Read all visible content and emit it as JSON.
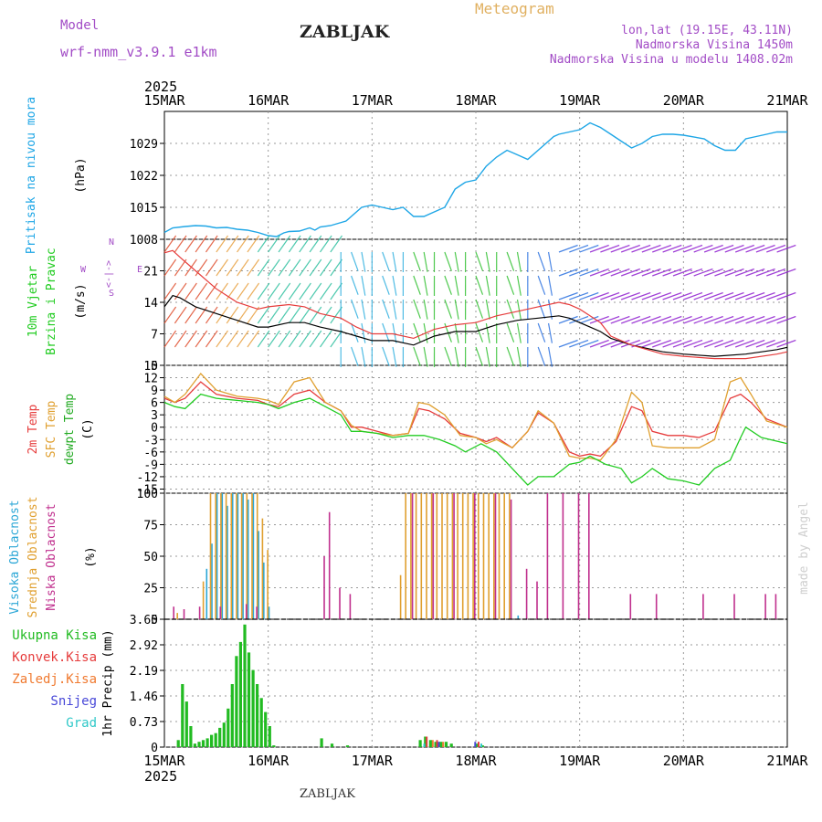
{
  "header": {
    "model_label": "Model",
    "model_name": "wrf-nmm_v3.9.1 e1km",
    "station": "ZABLJAK",
    "meteogram": "Meteogram",
    "lonlat": "lon,lat (19.15E, 43.11N)",
    "altitude": "Nadmorska Visina 1450m",
    "model_altitude": "Nadmorska Visina u modelu 1408.02m",
    "footer_station": "ZABLJAK",
    "watermark": "made by Angel"
  },
  "colors": {
    "pressure": "#1ea6e6",
    "temp": "#e63c3c",
    "sfc": "#e0a030",
    "dewpt": "#22cc22",
    "high_cloud": "#2aa6d6",
    "mid_cloud": "#e0a030",
    "low_cloud": "#c0308e",
    "total_precip": "#22bb22",
    "conv_precip": "#e63c3c",
    "freezing": "#f07a30",
    "snow": "#4848d8",
    "graupel": "#30c8c8",
    "wind_line": "#000000",
    "gust": "#e63c3c",
    "model_label": "#a24cc6",
    "meteogram_label": "#e0b060"
  },
  "chart_data": [
    {
      "type": "line",
      "name": "pressure",
      "ylabel": [
        "Pritisak na nivou mora",
        "(hPa)"
      ],
      "yticks": [
        1008,
        1015,
        1022,
        1029
      ],
      "ylim": [
        1008,
        1036
      ],
      "time_axis": {
        "year": "2025",
        "labels": [
          "15MAR",
          "16MAR",
          "17MAR",
          "18MAR",
          "19MAR",
          "20MAR",
          "21MAR"
        ],
        "days": [
          0,
          1,
          2,
          3,
          4,
          5,
          6
        ]
      },
      "x": [
        0,
        0.08,
        0.2,
        0.3,
        0.4,
        0.5,
        0.6,
        0.7,
        0.8,
        0.9,
        1.0,
        1.08,
        1.15,
        1.2,
        1.3,
        1.4,
        1.45,
        1.5,
        1.6,
        1.75,
        1.8,
        1.9,
        2.0,
        2.1,
        2.2,
        2.3,
        2.4,
        2.5,
        2.6,
        2.7,
        2.8,
        2.9,
        3.0,
        3.1,
        3.2,
        3.3,
        3.4,
        3.5,
        3.6,
        3.75,
        3.8,
        3.9,
        4.0,
        4.1,
        4.2,
        4.3,
        4.4,
        4.5,
        4.6,
        4.7,
        4.8,
        4.9,
        5.0,
        5.2,
        5.3,
        5.4,
        5.5,
        5.6,
        5.7,
        5.8,
        5.9,
        6.0
      ],
      "y": [
        1009.5,
        1010.5,
        1010.8,
        1011.0,
        1010.9,
        1010.5,
        1010.6,
        1010.2,
        1010.0,
        1009.5,
        1008.8,
        1008.6,
        1009.4,
        1009.7,
        1009.8,
        1010.5,
        1010.0,
        1010.7,
        1011.0,
        1012.0,
        1013.0,
        1015.0,
        1015.5,
        1015.0,
        1014.5,
        1015.0,
        1013.0,
        1013.0,
        1014.0,
        1015.0,
        1019.0,
        1020.5,
        1021.0,
        1024.0,
        1026.0,
        1027.5,
        1026.5,
        1025.5,
        1027.5,
        1030.5,
        1031.0,
        1031.5,
        1032.0,
        1033.5,
        1032.5,
        1031.0,
        1029.5,
        1028.0,
        1029.0,
        1030.5,
        1031.0,
        1031.0,
        1030.8,
        1030.0,
        1028.5,
        1027.5,
        1027.5,
        1030.0,
        1030.5,
        1031.0,
        1031.5,
        1031.5
      ]
    },
    {
      "type": "line",
      "name": "wind",
      "ylabel": [
        "10m Vjetar",
        "Brzina i Pravac",
        "(m/s)"
      ],
      "yticks": [
        0,
        7,
        14,
        21
      ],
      "ylim": [
        0,
        28
      ],
      "direction_key": [
        "W",
        "<-|->",
        "E",
        "N",
        "S"
      ],
      "series": [
        {
          "name": "speed",
          "x": [
            0,
            0.08,
            0.15,
            0.3,
            0.5,
            0.7,
            0.9,
            1.0,
            1.2,
            1.35,
            1.5,
            1.7,
            1.85,
            2.0,
            2.2,
            2.4,
            2.6,
            2.8,
            3.0,
            3.2,
            3.4,
            3.6,
            3.8,
            3.9,
            4.0,
            4.1,
            4.2,
            4.3,
            4.5,
            4.8,
            5.0,
            5.3,
            5.6,
            5.9,
            6.0
          ],
          "y": [
            13,
            15.5,
            15,
            13,
            11.5,
            10,
            8.5,
            8.5,
            9.5,
            9.5,
            8.5,
            7.5,
            6.5,
            5.5,
            5.5,
            4.5,
            6.5,
            7.5,
            7.5,
            9,
            10,
            10.5,
            11,
            10.5,
            9.5,
            8.5,
            7.5,
            6,
            4.5,
            3,
            2.5,
            2,
            2.5,
            3.5,
            4
          ]
        },
        {
          "name": "gust",
          "x": [
            0,
            0.08,
            0.15,
            0.3,
            0.5,
            0.7,
            0.9,
            1.0,
            1.2,
            1.35,
            1.5,
            1.7,
            1.85,
            2.0,
            2.2,
            2.4,
            2.6,
            2.8,
            3.0,
            3.2,
            3.4,
            3.6,
            3.8,
            3.9,
            4.0,
            4.1,
            4.2,
            4.3,
            4.5,
            4.8,
            5.0,
            5.3,
            5.6,
            5.9,
            6.0
          ],
          "y": [
            25,
            25.5,
            24,
            21,
            17,
            14,
            12.5,
            13,
            13.5,
            13,
            11.5,
            10.5,
            8.5,
            7,
            7,
            6,
            8,
            9,
            9.5,
            11,
            12,
            13,
            14,
            13.5,
            12.5,
            11,
            9.5,
            6.5,
            4.5,
            2.5,
            2,
            1.5,
            1.5,
            2.5,
            3
          ]
        }
      ]
    },
    {
      "type": "line",
      "name": "temperature",
      "ylabel": [
        "2m Temp",
        "SFC Temp",
        "dewpt Temp",
        "(C)"
      ],
      "yticks": [
        15,
        12,
        9,
        6,
        3,
        0,
        -3,
        -6,
        -9,
        -12,
        -15
      ],
      "ylim": [
        -16,
        15
      ],
      "series": [
        {
          "name": "2m Temp",
          "x": [
            0,
            0.1,
            0.2,
            0.35,
            0.5,
            0.7,
            0.9,
            1.0,
            1.1,
            1.25,
            1.4,
            1.55,
            1.7,
            1.8,
            1.9,
            2.05,
            2.2,
            2.35,
            2.45,
            2.55,
            2.7,
            2.85,
            3.0,
            3.1,
            3.2,
            3.35,
            3.5,
            3.6,
            3.75,
            3.9,
            4.0,
            4.1,
            4.2,
            4.35,
            4.5,
            4.6,
            4.7,
            4.85,
            5.0,
            5.15,
            5.3,
            5.45,
            5.55,
            5.65,
            5.8,
            6.0
          ],
          "y": [
            7,
            6,
            7,
            11,
            8,
            7,
            6.5,
            5.5,
            5,
            8,
            9,
            6,
            4,
            0,
            0,
            -1,
            -2,
            -1.5,
            4.5,
            4,
            2,
            -1.5,
            -2.5,
            -3.5,
            -2.5,
            -5,
            -1,
            3.5,
            1,
            -6,
            -7,
            -6.5,
            -7,
            -3.5,
            5,
            4,
            -1,
            -2,
            -2,
            -2.5,
            -1,
            7,
            8,
            6,
            2,
            0
          ]
        },
        {
          "name": "SFC Temp",
          "x": [
            0,
            0.1,
            0.2,
            0.35,
            0.5,
            0.7,
            0.9,
            1.0,
            1.1,
            1.25,
            1.4,
            1.55,
            1.7,
            1.8,
            1.9,
            2.05,
            2.2,
            2.35,
            2.45,
            2.55,
            2.7,
            2.85,
            3.0,
            3.1,
            3.2,
            3.35,
            3.5,
            3.6,
            3.75,
            3.9,
            4.0,
            4.1,
            4.2,
            4.35,
            4.5,
            4.6,
            4.7,
            4.85,
            5.0,
            5.15,
            5.3,
            5.45,
            5.55,
            5.65,
            5.8,
            6.0
          ],
          "y": [
            7.5,
            6,
            8,
            13,
            9,
            7.5,
            7,
            6.5,
            5.5,
            11,
            12,
            6,
            4,
            0.5,
            -1,
            -1.5,
            -2,
            -1.5,
            6,
            5.5,
            3,
            -2,
            -2.5,
            -4,
            -3,
            -5,
            -1,
            4,
            1,
            -7,
            -7.5,
            -7.5,
            -8,
            -3,
            8.5,
            6,
            -4.5,
            -5,
            -5,
            -5,
            -3,
            11,
            12,
            8,
            1.5,
            0
          ]
        },
        {
          "name": "dewpt Temp",
          "x": [
            0,
            0.1,
            0.2,
            0.35,
            0.5,
            0.7,
            0.9,
            1.0,
            1.1,
            1.25,
            1.4,
            1.55,
            1.7,
            1.8,
            1.9,
            2.05,
            2.2,
            2.35,
            2.5,
            2.65,
            2.8,
            2.9,
            3.05,
            3.2,
            3.35,
            3.5,
            3.6,
            3.75,
            3.9,
            4.0,
            4.1,
            4.25,
            4.4,
            4.5,
            4.6,
            4.7,
            4.85,
            5.0,
            5.15,
            5.3,
            5.45,
            5.55,
            5.6,
            5.75,
            6.0
          ],
          "y": [
            6,
            5,
            4.5,
            8,
            7,
            6.5,
            6,
            5.5,
            4.5,
            6,
            7,
            5,
            3,
            -1,
            -1,
            -1.5,
            -2.5,
            -2,
            -2,
            -3,
            -4.5,
            -6,
            -4,
            -6,
            -10,
            -14,
            -12,
            -12,
            -9,
            -8.5,
            -7,
            -9,
            -10,
            -13.5,
            -12,
            -10,
            -12.5,
            -13,
            -14,
            -10,
            -8,
            -2.5,
            0,
            -2.5,
            -4
          ]
        }
      ]
    },
    {
      "type": "bar",
      "name": "cloud",
      "ylabel": [
        "Visoka Oblacnost",
        "Srednja Oblacnost",
        "Niska Oblacnost",
        "(%)"
      ],
      "yticks": [
        0,
        25,
        50,
        75,
        100
      ],
      "ylim": [
        0,
        100
      ],
      "series": [
        {
          "name": "Visoka Oblacnost",
          "x": [
            0.4,
            0.45,
            0.5,
            0.55,
            0.6,
            0.65,
            0.7,
            0.75,
            0.8,
            0.85,
            0.9,
            0.95,
            1.0,
            3.4
          ],
          "values": [
            40,
            60,
            100,
            100,
            90,
            100,
            100,
            100,
            95,
            100,
            70,
            45,
            10,
            3
          ]
        },
        {
          "name": "Srednja Oblacnost",
          "x": [
            0.1,
            0.35,
            0.42,
            0.47,
            0.52,
            0.57,
            0.62,
            0.67,
            0.72,
            0.77,
            0.82,
            0.87,
            0.92,
            0.97,
            2.25,
            2.3,
            2.35,
            2.4,
            2.45,
            2.5,
            2.55,
            2.6,
            2.65,
            2.7,
            2.75,
            2.8,
            2.85,
            2.9,
            2.95,
            3.0,
            3.05,
            3.1,
            3.15,
            3.2,
            3.25,
            3.3
          ],
          "values": [
            5,
            30,
            100,
            100,
            100,
            100,
            100,
            100,
            100,
            100,
            100,
            100,
            80,
            55,
            35,
            100,
            100,
            100,
            100,
            100,
            100,
            100,
            100,
            100,
            100,
            100,
            100,
            100,
            100,
            100,
            100,
            100,
            100,
            100,
            100,
            100
          ]
        },
        {
          "name": "Niska Oblacnost",
          "x": [
            0.1,
            0.2,
            0.35,
            0.55,
            0.8,
            0.9,
            1.55,
            1.6,
            1.7,
            1.8,
            2.4,
            2.6,
            2.8,
            3.0,
            3.2,
            3.35,
            3.5,
            3.6,
            3.7,
            3.85,
            4.0,
            4.1,
            4.5,
            4.75,
            5.2,
            5.5,
            5.8,
            5.9
          ],
          "values": [
            10,
            8,
            10,
            10,
            12,
            10,
            50,
            85,
            25,
            20,
            100,
            100,
            100,
            100,
            100,
            95,
            40,
            30,
            100,
            100,
            100,
            100,
            20,
            20,
            20,
            20,
            20,
            20
          ]
        }
      ]
    },
    {
      "type": "bar",
      "name": "precipitation",
      "ylabel": [
        "1hr Precip (mm)"
      ],
      "yticks": [
        0,
        0.73,
        1.46,
        2.19,
        2.92,
        3.65
      ],
      "ylim": [
        0,
        3.65
      ],
      "legend": [
        "Ukupna Kisa",
        "Konvek.Kisa",
        "Zaledj.Kisa",
        "Snijeg",
        "Grad"
      ],
      "series": [
        {
          "name": "Ukupna Kisa",
          "x": [
            0.12,
            0.16,
            0.2,
            0.24,
            0.28,
            0.32,
            0.36,
            0.4,
            0.44,
            0.48,
            0.52,
            0.56,
            0.6,
            0.64,
            0.68,
            0.72,
            0.76,
            0.8,
            0.84,
            0.88,
            0.92,
            0.96,
            1.0,
            1.04,
            1.5,
            1.6,
            1.75,
            2.45,
            2.5,
            2.55,
            2.6,
            2.65,
            2.7,
            2.75,
            3.0,
            3.05
          ],
          "values": [
            0.2,
            1.8,
            1.3,
            0.6,
            0.1,
            0.15,
            0.2,
            0.25,
            0.35,
            0.4,
            0.55,
            0.7,
            1.1,
            1.8,
            2.6,
            3.0,
            3.5,
            2.7,
            2.2,
            1.8,
            1.4,
            1.0,
            0.6,
            0.05,
            0.25,
            0.1,
            0.05,
            0.2,
            0.3,
            0.2,
            0.15,
            0.15,
            0.15,
            0.1,
            0.1,
            0.05
          ]
        },
        {
          "name": "Konvek.Kisa",
          "x": [
            2.5,
            2.6,
            3.0
          ],
          "values": [
            0.3,
            0.2,
            0.15
          ]
        },
        {
          "name": "Zaledj.Kisa",
          "x": [
            2.55,
            2.65
          ],
          "values": [
            0.2,
            0.15
          ]
        },
        {
          "name": "Snijeg",
          "x": [
            2.6,
            2.95
          ],
          "values": [
            0.15,
            0.15
          ]
        },
        {
          "name": "Grad",
          "x": [
            2.45,
            3.0
          ],
          "values": [
            0.1,
            0.1
          ]
        }
      ]
    }
  ]
}
